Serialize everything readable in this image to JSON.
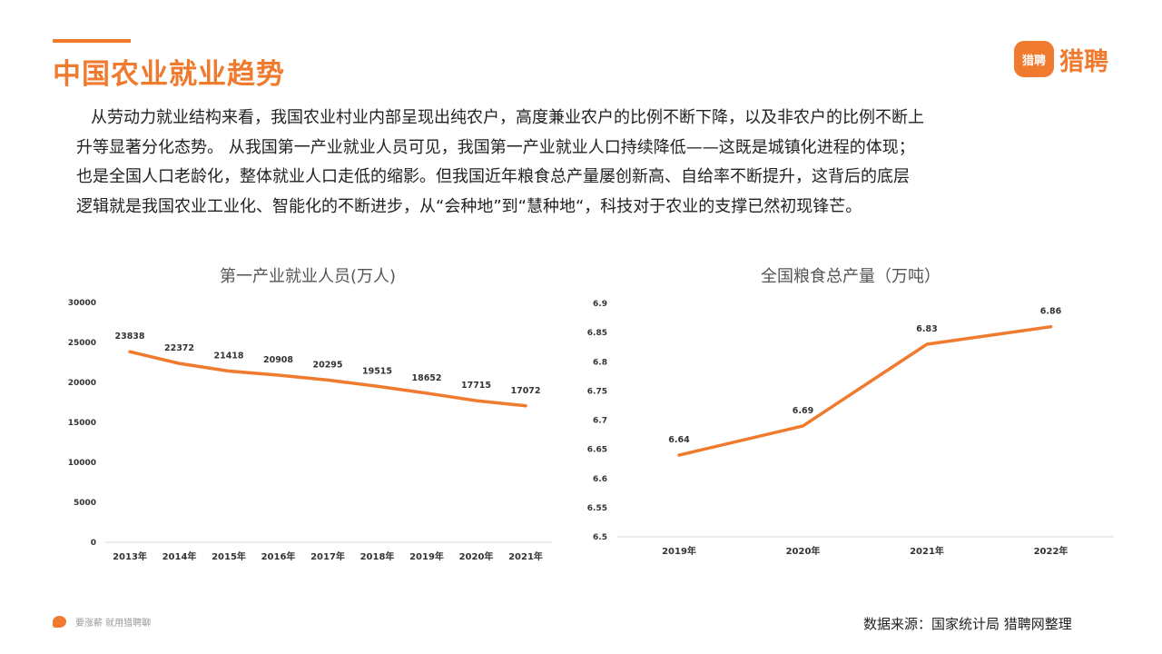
{
  "header": {
    "title": "中国农业就业趋势",
    "logo_badge": "猎聘",
    "logo_text": "猎聘"
  },
  "body": {
    "lines": [
      "从劳动力就业结构来看，我国农业村业内部呈现出纯农户，高度兼业农户的比例不断下降，以及非农户的比例不断上",
      "升等显著分化态势。 从我国第一产业就业人员可见，我国第一产业就业人口持续降低——这既是城镇化进程的体现；",
      "也是全国人口老龄化，整体就业人口走低的缩影。但我国近年粮食总产量屡创新高、自给率不断提升，这背后的底层",
      "逻辑就是我国农业工业化、智能化的不断进步，从“会种地”到“慧种地“，科技对于农业的支撑已然初现锋芒。"
    ]
  },
  "chart_data": [
    {
      "type": "line",
      "title": "第一产业就业人员(万人)",
      "categories": [
        "2013年",
        "2014年",
        "2015年",
        "2016年",
        "2017年",
        "2018年",
        "2019年",
        "2020年",
        "2021年"
      ],
      "values": [
        23838,
        22372,
        21418,
        20908,
        20295,
        19515,
        18652,
        17715,
        17072
      ],
      "ylim": [
        0,
        30000
      ],
      "yticks": [
        "0",
        "5000",
        "10000",
        "15000",
        "20000",
        "25000",
        "30000"
      ],
      "color": "#F07A2E",
      "grid": false
    },
    {
      "type": "line",
      "title": "全国粮食总产量（万吨）",
      "categories": [
        "2019年",
        "2020年",
        "2021年",
        "2022年"
      ],
      "values": [
        6.64,
        6.69,
        6.83,
        6.86
      ],
      "ylim": [
        6.5,
        6.9
      ],
      "yticks": [
        "6.5",
        "6.55",
        "6.6",
        "6.65",
        "6.7",
        "6.75",
        "6.8",
        "6.85",
        "6.9"
      ],
      "color": "#F07A2E",
      "grid": false
    }
  ],
  "footer": {
    "slogan": "要涨薪 就用猎聘聊",
    "source": "数据来源：国家统计局 猎聘网整理"
  }
}
